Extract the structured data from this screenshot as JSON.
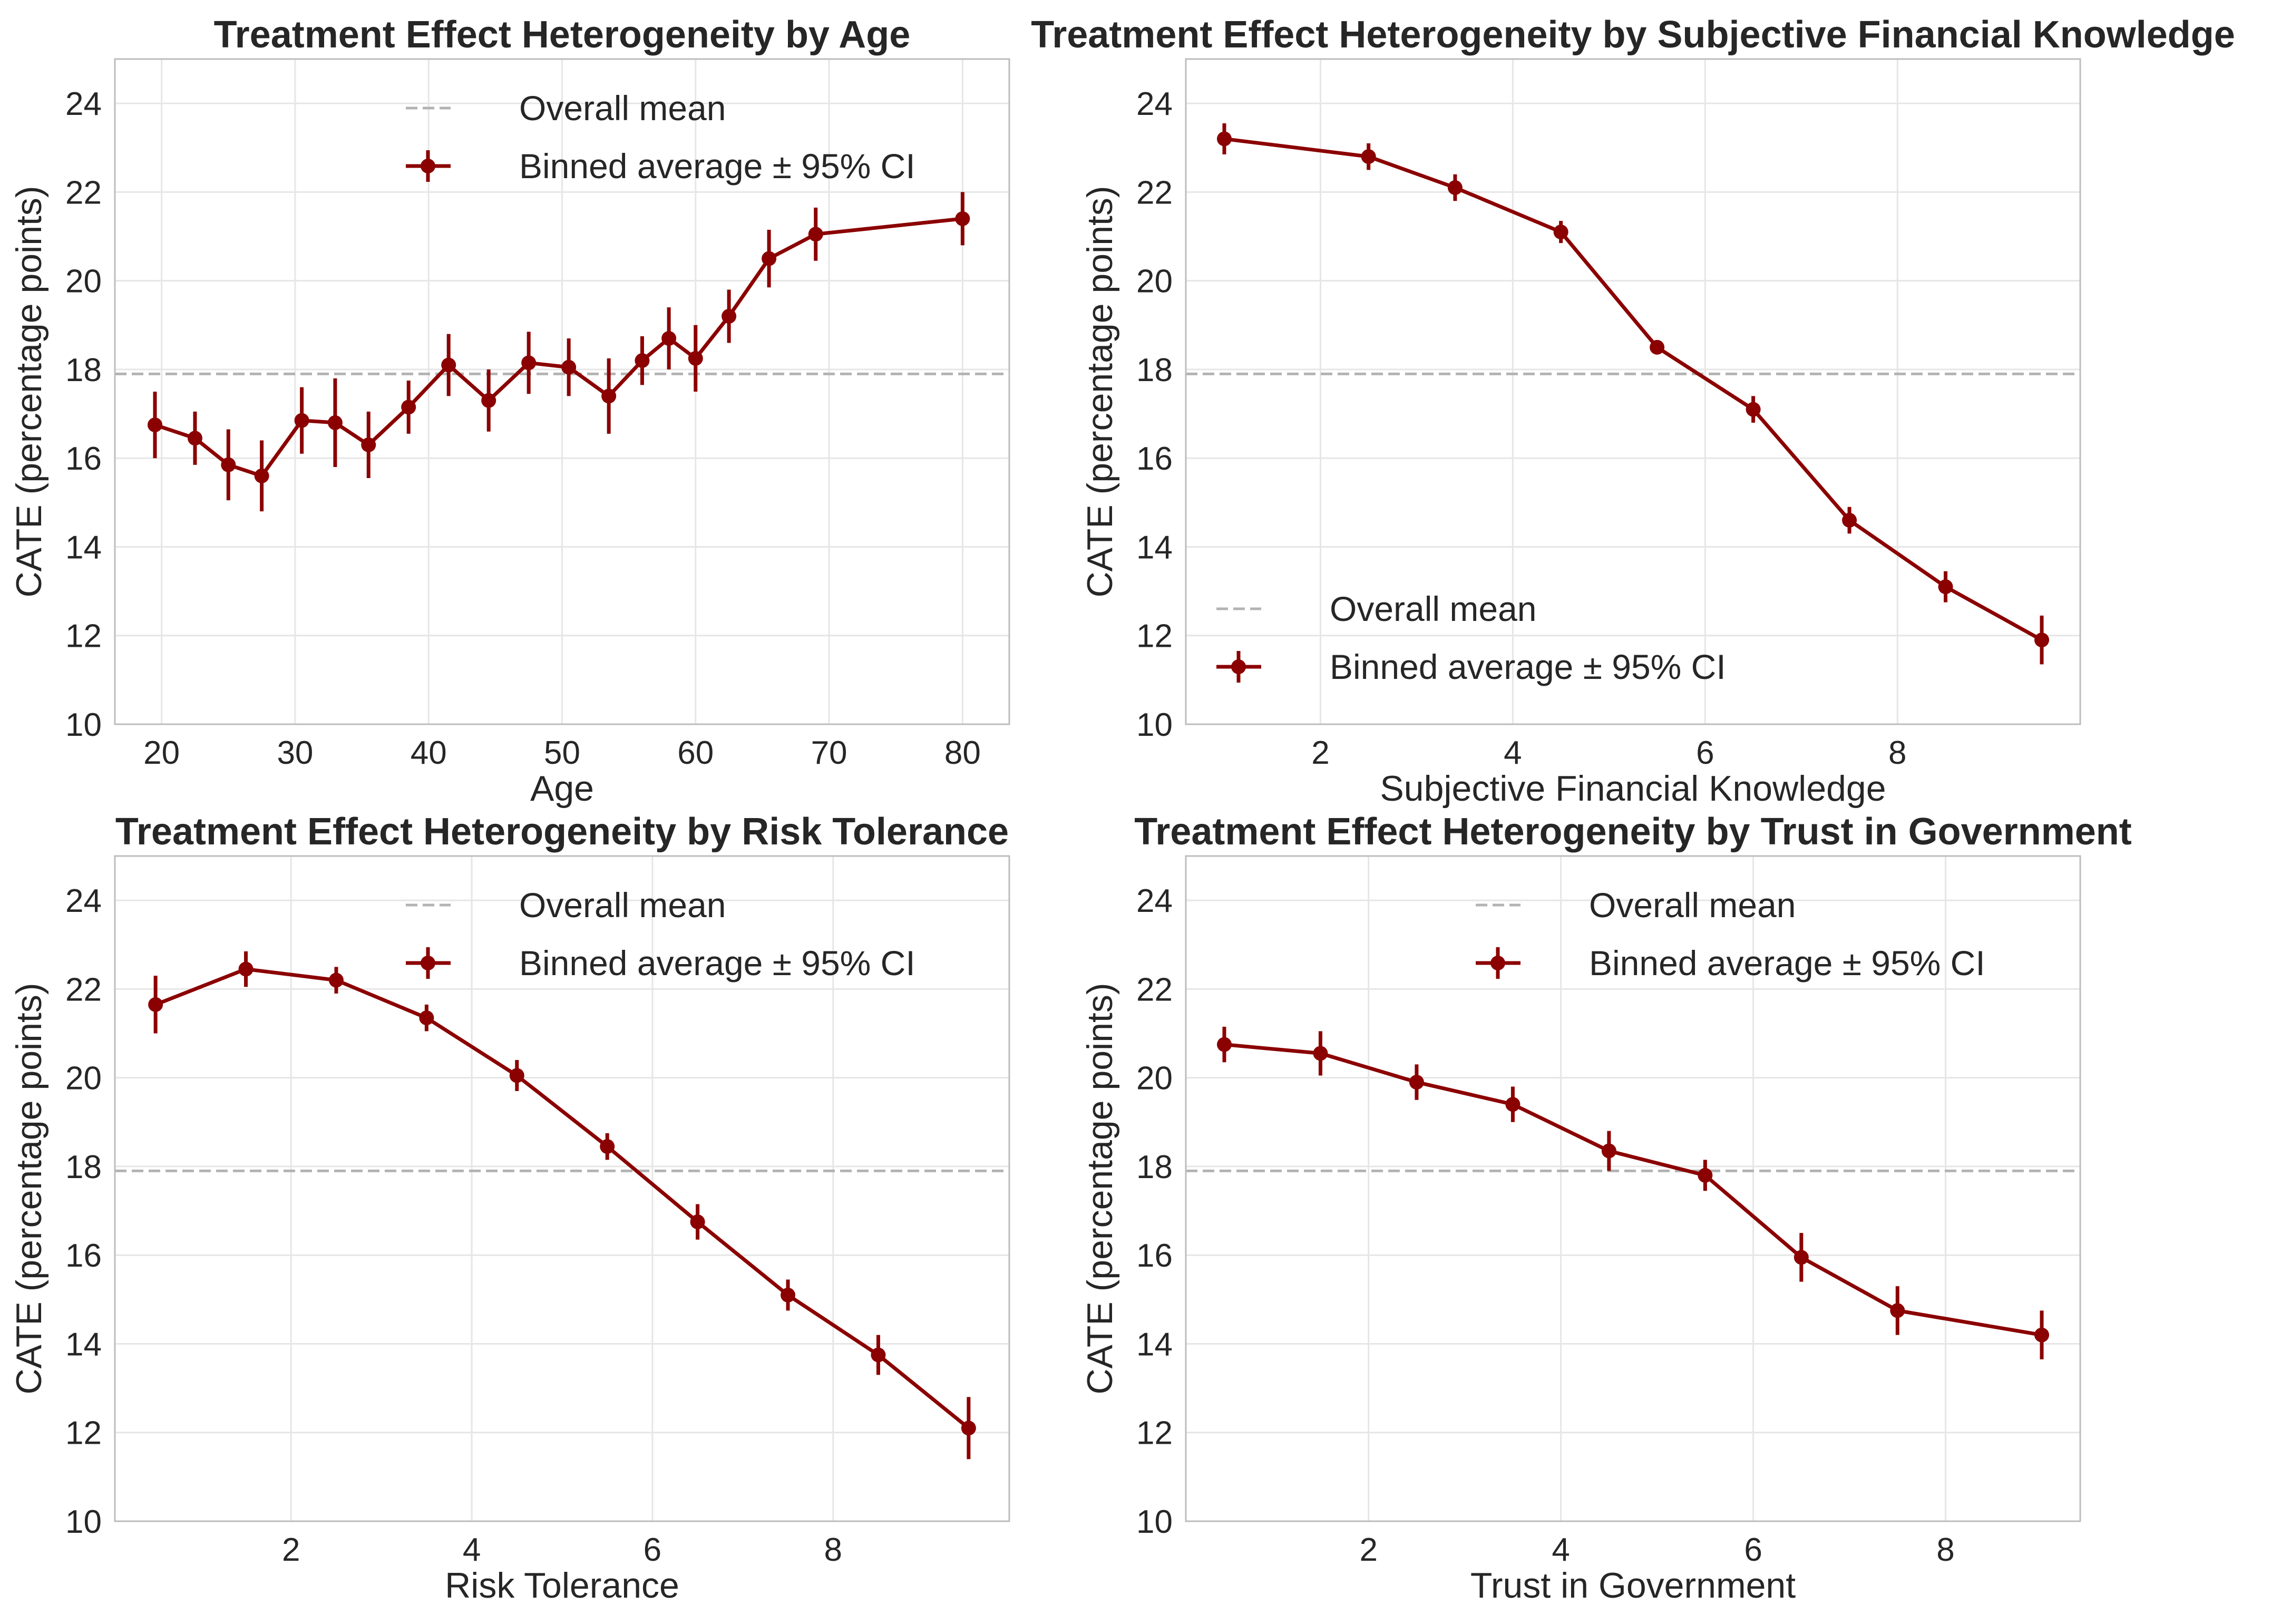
{
  "colors": {
    "series": "#8b0000",
    "mean_line": "#b3b3b3",
    "grid": "#e6e6e6",
    "frame": "#bdbdbd"
  },
  "legend": {
    "mean_label": "Overall mean",
    "series_label": "Binned average ± 95% CI"
  },
  "chart_data": [
    {
      "type": "line",
      "title": "Treatment Effect Heterogeneity by Age",
      "xlabel": "Age",
      "ylabel": "CATE (percentage points)",
      "xlim": [
        16.5,
        83.5
      ],
      "ylim": [
        10,
        25
      ],
      "xticks": [
        20,
        30,
        40,
        50,
        60,
        70,
        80
      ],
      "yticks": [
        10,
        12,
        14,
        16,
        18,
        20,
        22,
        24
      ],
      "grid": true,
      "legend_position": "top-right",
      "overall_mean": 17.9,
      "series": [
        {
          "x": [
            19.5,
            22.5,
            25,
            27.5,
            30.5,
            33,
            35.5,
            38.5,
            41.5,
            44.5,
            47.5,
            50.5,
            53.5,
            56,
            58,
            60,
            62.5,
            65.5,
            69,
            80
          ],
          "y": [
            16.75,
            16.45,
            15.85,
            15.6,
            16.85,
            16.8,
            16.3,
            17.15,
            18.1,
            17.3,
            18.15,
            18.05,
            17.4,
            18.2,
            18.7,
            18.25,
            19.2,
            20.5,
            21.05,
            21.4
          ],
          "ci": [
            0.75,
            0.6,
            0.8,
            0.8,
            0.75,
            1.0,
            0.75,
            0.6,
            0.7,
            0.7,
            0.7,
            0.65,
            0.85,
            0.55,
            0.7,
            0.75,
            0.6,
            0.65,
            0.6,
            0.6
          ]
        }
      ]
    },
    {
      "type": "line",
      "title": "Treatment Effect Heterogeneity by Subjective Financial Knowledge",
      "xlabel": "Subjective Financial Knowledge",
      "ylabel": "CATE (percentage points)",
      "xlim": [
        0.6,
        9.9
      ],
      "ylim": [
        10,
        25
      ],
      "xticks": [
        2,
        4,
        6,
        8
      ],
      "yticks": [
        10,
        12,
        14,
        16,
        18,
        20,
        22,
        24
      ],
      "grid": true,
      "legend_position": "bottom-left",
      "overall_mean": 17.9,
      "series": [
        {
          "x": [
            1,
            2.5,
            3.4,
            4.5,
            5.5,
            6.5,
            7.5,
            8.5,
            9.5
          ],
          "y": [
            23.2,
            22.8,
            22.1,
            21.1,
            18.5,
            17.1,
            14.6,
            13.1,
            11.9
          ],
          "ci": [
            0.35,
            0.3,
            0.3,
            0.25,
            0.15,
            0.3,
            0.3,
            0.35,
            0.55
          ]
        }
      ]
    },
    {
      "type": "line",
      "title": "Treatment Effect Heterogeneity by Risk Tolerance",
      "xlabel": "Risk Tolerance",
      "ylabel": "CATE (percentage points)",
      "xlim": [
        0.05,
        9.95
      ],
      "ylim": [
        10,
        25
      ],
      "xticks": [
        2,
        4,
        6,
        8
      ],
      "yticks": [
        10,
        12,
        14,
        16,
        18,
        20,
        22,
        24
      ],
      "grid": true,
      "legend_position": "top-right",
      "overall_mean": 17.9,
      "series": [
        {
          "x": [
            0.5,
            1.5,
            2.5,
            3.5,
            4.5,
            5.5,
            6.5,
            7.5,
            8.5,
            9.5
          ],
          "y": [
            21.65,
            22.45,
            22.2,
            21.35,
            20.05,
            18.45,
            16.75,
            15.1,
            13.75,
            12.1
          ],
          "ci": [
            0.65,
            0.4,
            0.3,
            0.3,
            0.35,
            0.3,
            0.4,
            0.35,
            0.45,
            0.7
          ]
        }
      ]
    },
    {
      "type": "line",
      "title": "Treatment Effect Heterogeneity by Trust in Government",
      "xlabel": "Trust in Government",
      "ylabel": "CATE (percentage points)",
      "xlim": [
        0.1,
        9.4
      ],
      "ylim": [
        10,
        25
      ],
      "xticks": [
        2,
        4,
        6,
        8
      ],
      "yticks": [
        10,
        12,
        14,
        16,
        18,
        20,
        22,
        24
      ],
      "grid": true,
      "legend_position": "top-right",
      "overall_mean": 17.9,
      "series": [
        {
          "x": [
            0.5,
            1.5,
            2.5,
            3.5,
            4.5,
            5.5,
            6.5,
            7.5,
            9
          ],
          "y": [
            20.75,
            20.55,
            19.9,
            19.4,
            18.35,
            17.8,
            15.95,
            14.75,
            14.2
          ],
          "ci": [
            0.4,
            0.5,
            0.4,
            0.4,
            0.45,
            0.35,
            0.55,
            0.55,
            0.55
          ]
        }
      ]
    }
  ]
}
